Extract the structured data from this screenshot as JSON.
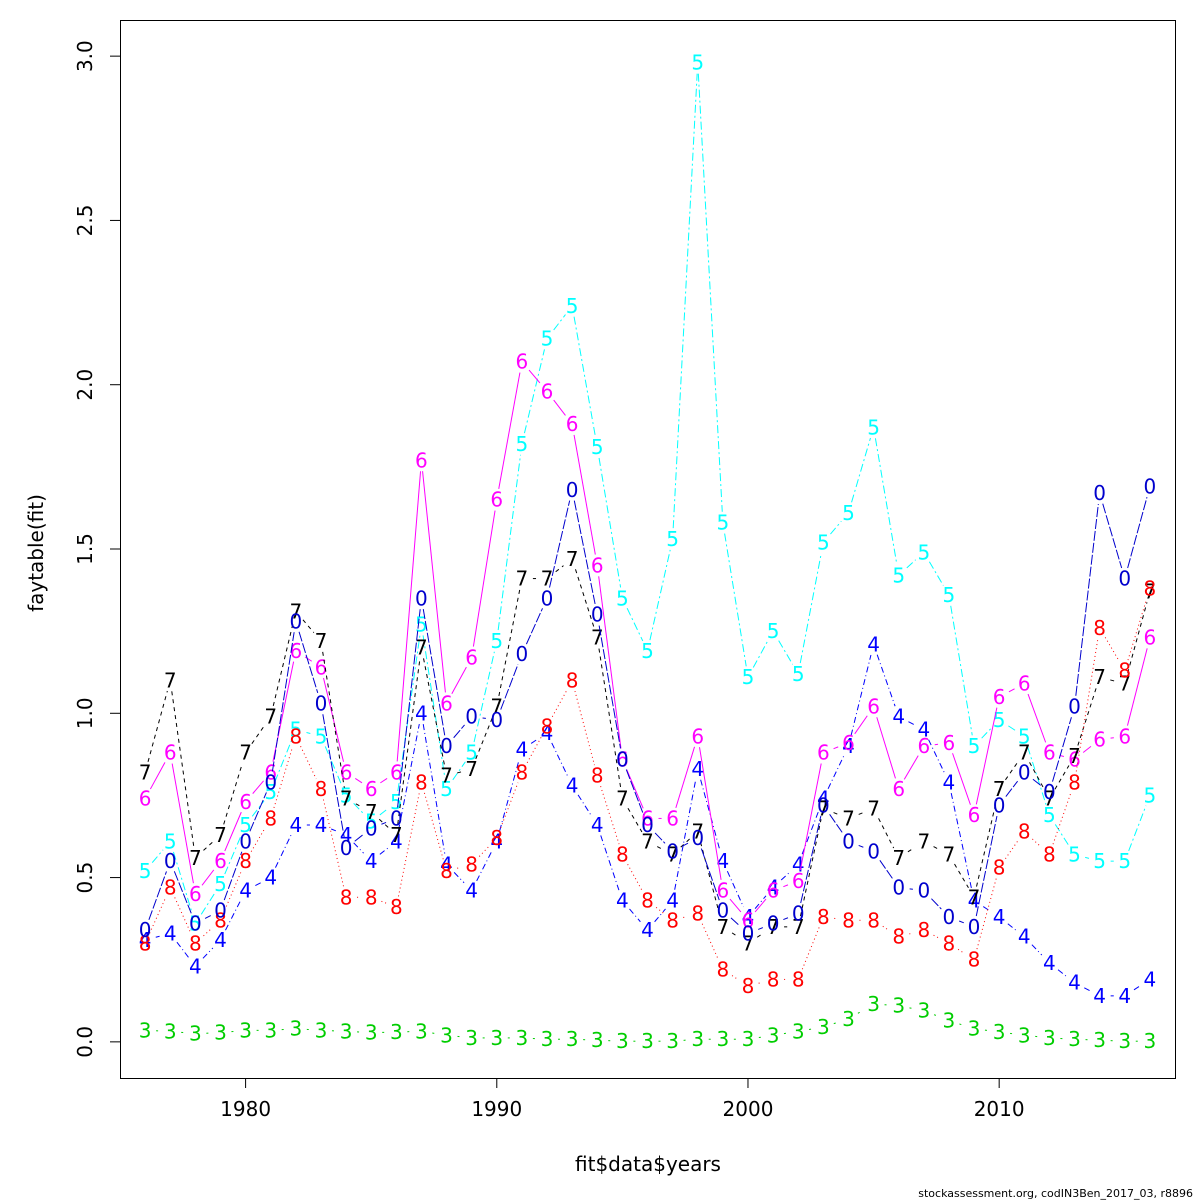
{
  "chart_data": {
    "type": "line",
    "title": "",
    "xlabel": "fit$data$years",
    "ylabel": "faytable(fit)",
    "xlim": [
      1975,
      2017
    ],
    "ylim": [
      -0.11,
      3.11
    ],
    "xticks": [
      1980,
      1990,
      2000,
      2010
    ],
    "yticks": [
      0.0,
      0.5,
      1.0,
      1.5,
      2.0,
      2.5,
      3.0
    ],
    "xtick_labels": [
      "1980",
      "1990",
      "2000",
      "2010"
    ],
    "ytick_labels": [
      "0.0",
      "0.5",
      "1.0",
      "1.5",
      "2.0",
      "2.5",
      "3.0"
    ],
    "grid": false,
    "legend": "none",
    "x": [
      1976,
      1977,
      1978,
      1979,
      1980,
      1981,
      1982,
      1983,
      1984,
      1985,
      1986,
      1987,
      1988,
      1989,
      1990,
      1991,
      1992,
      1993,
      1994,
      1995,
      1996,
      1997,
      1998,
      1999,
      2000,
      2001,
      2002,
      2003,
      2004,
      2005,
      2006,
      2007,
      2008,
      2009,
      2010,
      2011,
      2012,
      2013,
      2014,
      2015,
      2016
    ],
    "series": [
      {
        "name": "3",
        "color": "#00cd00",
        "dash": "2,6",
        "values": [
          0.035,
          0.032,
          0.025,
          0.028,
          0.035,
          0.035,
          0.04,
          0.035,
          0.032,
          0.028,
          0.03,
          0.032,
          0.02,
          0.012,
          0.012,
          0.012,
          0.008,
          0.008,
          0.005,
          0.002,
          0.002,
          0.002,
          0.008,
          0.008,
          0.008,
          0.02,
          0.032,
          0.045,
          0.07,
          0.115,
          0.11,
          0.095,
          0.065,
          0.04,
          0.03,
          0.02,
          0.012,
          0.008,
          0.005,
          0.002,
          0.002
        ]
      },
      {
        "name": "4",
        "color": "#0000ff",
        "dash": "6,3,1,3",
        "values": [
          0.31,
          0.33,
          0.23,
          0.31,
          0.46,
          0.5,
          0.66,
          0.66,
          0.63,
          0.55,
          0.61,
          1.0,
          0.54,
          0.46,
          0.61,
          0.89,
          0.94,
          0.78,
          0.66,
          0.43,
          0.34,
          0.43,
          0.83,
          0.55,
          0.38,
          0.47,
          0.54,
          0.74,
          0.9,
          1.21,
          0.99,
          0.95,
          0.79,
          0.43,
          0.38,
          0.32,
          0.24,
          0.18,
          0.14,
          0.14,
          0.19
        ]
      },
      {
        "name": "5",
        "color": "#00ffff",
        "dash": "8,3,2,3",
        "values": [
          0.52,
          0.61,
          0.36,
          0.48,
          0.66,
          0.76,
          0.95,
          0.93,
          0.75,
          0.67,
          0.73,
          1.27,
          0.77,
          0.88,
          1.22,
          1.82,
          2.14,
          2.24,
          1.81,
          1.35,
          1.19,
          1.53,
          2.98,
          1.58,
          1.11,
          1.25,
          1.12,
          1.52,
          1.61,
          1.87,
          1.42,
          1.49,
          1.36,
          0.9,
          0.98,
          0.93,
          0.69,
          0.57,
          0.55,
          0.55,
          0.75
        ]
      },
      {
        "name": "6",
        "color": "#ff00ff",
        "dash": "",
        "values": [
          0.74,
          0.88,
          0.45,
          0.55,
          0.73,
          0.82,
          1.19,
          1.14,
          0.82,
          0.77,
          0.82,
          1.77,
          1.03,
          1.17,
          1.65,
          2.07,
          1.98,
          1.88,
          1.45,
          0.86,
          0.68,
          0.68,
          0.93,
          0.46,
          0.37,
          0.46,
          0.49,
          0.88,
          0.91,
          1.02,
          0.77,
          0.9,
          0.91,
          0.69,
          1.05,
          1.09,
          0.88,
          0.86,
          0.92,
          0.93,
          1.23
        ]
      },
      {
        "name": "7",
        "color": "#000000",
        "dash": "4,4",
        "values": [
          0.82,
          1.1,
          0.56,
          0.63,
          0.88,
          0.99,
          1.31,
          1.22,
          0.74,
          0.7,
          0.63,
          1.2,
          0.81,
          0.83,
          1.02,
          1.41,
          1.41,
          1.47,
          1.23,
          0.74,
          0.61,
          0.57,
          0.64,
          0.35,
          0.3,
          0.35,
          0.35,
          0.71,
          0.68,
          0.71,
          0.56,
          0.61,
          0.57,
          0.44,
          0.77,
          0.88,
          0.74,
          0.87,
          1.11,
          1.09,
          1.37
        ]
      },
      {
        "name": "8",
        "color": "#ff0000",
        "dash": "1,3",
        "values": [
          0.3,
          0.47,
          0.3,
          0.37,
          0.55,
          0.68,
          0.93,
          0.77,
          0.44,
          0.44,
          0.41,
          0.79,
          0.52,
          0.54,
          0.62,
          0.82,
          0.96,
          1.1,
          0.81,
          0.57,
          0.43,
          0.37,
          0.39,
          0.22,
          0.17,
          0.19,
          0.19,
          0.38,
          0.37,
          0.37,
          0.32,
          0.34,
          0.3,
          0.25,
          0.53,
          0.64,
          0.57,
          0.79,
          1.26,
          1.13,
          1.38
        ]
      },
      {
        "name": "0",
        "color": "#0000cd",
        "dash": "10,2",
        "values": [
          0.34,
          0.55,
          0.36,
          0.4,
          0.61,
          0.79,
          1.28,
          1.03,
          0.59,
          0.65,
          0.68,
          1.35,
          0.9,
          0.99,
          0.98,
          1.18,
          1.35,
          1.68,
          1.3,
          0.86,
          0.66,
          0.58,
          0.62,
          0.4,
          0.33,
          0.36,
          0.39,
          0.72,
          0.61,
          0.58,
          0.47,
          0.46,
          0.38,
          0.35,
          0.72,
          0.82,
          0.76,
          1.02,
          1.67,
          1.41,
          1.69
        ]
      }
    ]
  },
  "footer": "stockassessment.org, codIN3Ben_2017_03, r8896"
}
